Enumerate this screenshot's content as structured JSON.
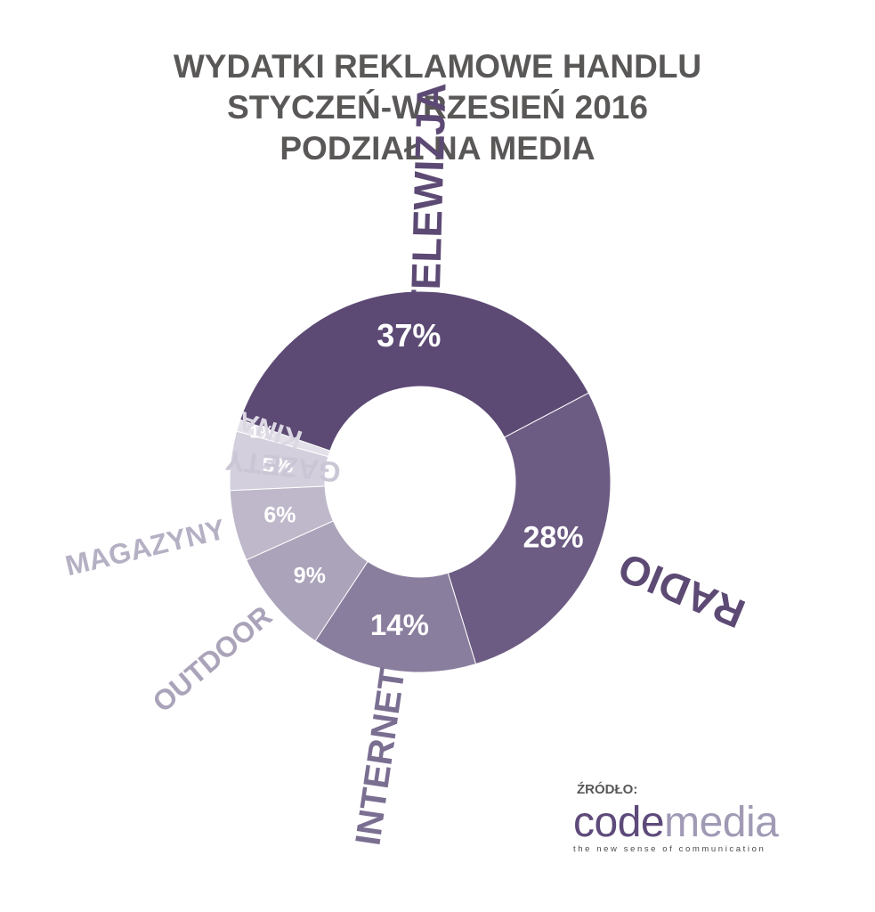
{
  "title_lines": [
    "WYDATKI REKLAMOWE HANDLU",
    "STYCZEŃ-WRZESIEŃ 2016",
    "PODZIAŁ NA MEDIA"
  ],
  "chart_data": {
    "type": "pie",
    "variant": "donut",
    "title": "WYDATKI REKLAMOWE HANDLU STYCZEŃ-WRZESIEŃ 2016 PODZIAŁ NA MEDIA",
    "unit": "%",
    "slices": [
      {
        "label": "TELEWIZJA",
        "value": 37,
        "value_label": "37%",
        "color": "#5c4a74",
        "label_color": "#5c4a74"
      },
      {
        "label": "RADIO",
        "value": 28,
        "value_label": "28%",
        "color": "#6c5c83",
        "label_color": "#5c4a74"
      },
      {
        "label": "INTERNET",
        "value": 14,
        "value_label": "14%",
        "color": "#8a7e9e",
        "label_color": "#7a6e91"
      },
      {
        "label": "OUTDOOR",
        "value": 9,
        "value_label": "9%",
        "color": "#aaa3ba",
        "label_color": "#aaa3ba"
      },
      {
        "label": "MAGAZYNY",
        "value": 6,
        "value_label": "6%",
        "color": "#beb8ca",
        "label_color": "#b6b0c4"
      },
      {
        "label": "GAZETY",
        "value": 5,
        "value_label": "5%",
        "color": "#d3cfdc",
        "label_color": "#cbc6d5"
      },
      {
        "label": "KINA",
        "value": 1,
        "value_label": "1%",
        "color": "#e4e1ea",
        "label_color": "#dcd8e3"
      }
    ],
    "legend": "labels placed radially around the donut"
  },
  "source": {
    "label": "ŹRÓDŁO:",
    "logo_part1": "code",
    "logo_part2": "media",
    "tagline": "the new sense of communication"
  }
}
